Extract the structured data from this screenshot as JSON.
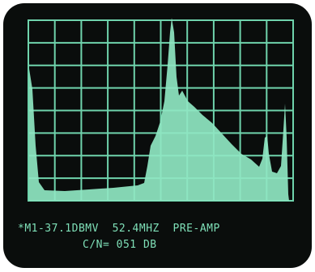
{
  "screen": {
    "readout": {
      "line1": "*M1-37.1DBMV  52.4MHZ  PRE-AMP",
      "line2": "C/N= 051 DB"
    }
  }
}
